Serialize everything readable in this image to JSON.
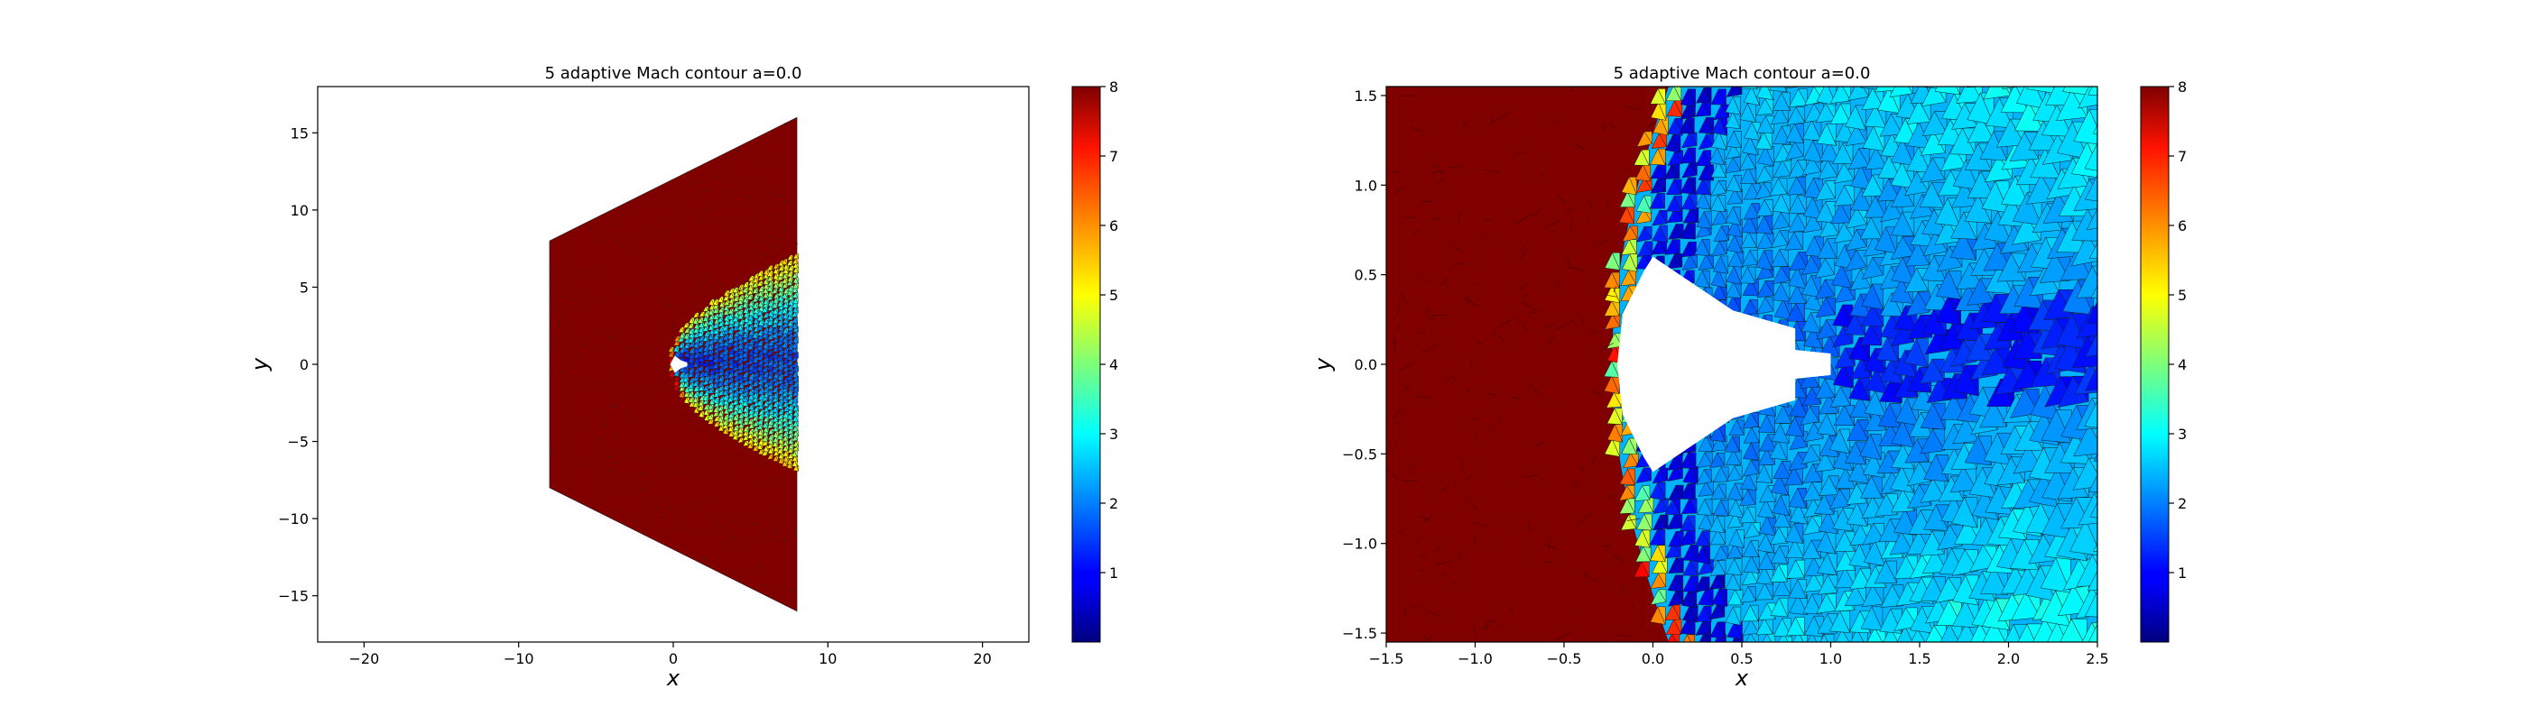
{
  "colors": {
    "background": "#ffffff",
    "axis": "#000000",
    "upstream": "#800000",
    "mesh_edge": "#1a1a1a",
    "body": "#ffffff"
  },
  "colormap": "jet",
  "chart_data": [
    {
      "type": "tricontour",
      "title": "5 adaptive Mach contour a=0.0",
      "xlabel": "x",
      "ylabel": "y",
      "xlim": [
        -23,
        23
      ],
      "ylim": [
        -18,
        18
      ],
      "xticks": [
        -20,
        -10,
        0,
        10,
        20
      ],
      "yticks": [
        -15,
        -10,
        -5,
        0,
        5,
        10,
        15
      ],
      "xtick_labels": [
        "−20",
        "−10",
        "0",
        "10",
        "20"
      ],
      "ytick_labels": [
        "−15",
        "−10",
        "−5",
        "0",
        "5",
        "10",
        "15"
      ],
      "domain_polygon": [
        [
          -8,
          8
        ],
        [
          8,
          16
        ],
        [
          8,
          -16
        ],
        [
          -8,
          -8
        ]
      ],
      "body_polygon": [
        [
          -0.2,
          0
        ],
        [
          0.1,
          0.55
        ],
        [
          0.5,
          0.25
        ],
        [
          0.9,
          0.12
        ],
        [
          0.9,
          -0.12
        ],
        [
          0.5,
          -0.25
        ],
        [
          0.1,
          -0.55
        ]
      ],
      "freestream_mach": 8,
      "colorbar": {
        "min": 0,
        "max": 8,
        "ticks": [
          1,
          2,
          3,
          4,
          5,
          6,
          7,
          8
        ],
        "tick_labels": [
          "1",
          "2",
          "3",
          "4",
          "5",
          "6",
          "7",
          "8"
        ]
      }
    },
    {
      "type": "tricontour",
      "title": "5 adaptive Mach contour a=0.0",
      "xlabel": "x",
      "ylabel": "y",
      "xlim": [
        -1.5,
        2.5
      ],
      "ylim": [
        -1.55,
        1.55
      ],
      "xticks": [
        -1.5,
        -1.0,
        -0.5,
        0.0,
        0.5,
        1.0,
        1.5,
        2.0,
        2.5
      ],
      "yticks": [
        -1.5,
        -1.0,
        -0.5,
        0.0,
        0.5,
        1.0,
        1.5
      ],
      "xtick_labels": [
        "−1.5",
        "−1.0",
        "−0.5",
        "0.0",
        "0.5",
        "1.0",
        "1.5",
        "2.0",
        "2.5"
      ],
      "ytick_labels": [
        "−1.5",
        "−1.0",
        "−0.5",
        "0.0",
        "0.5",
        "1.0",
        "1.5"
      ],
      "body_polygon": [
        [
          -0.2,
          0
        ],
        [
          -0.17,
          0.28
        ],
        [
          -0.05,
          0.52
        ],
        [
          0.0,
          0.6
        ],
        [
          0.45,
          0.3
        ],
        [
          0.8,
          0.2
        ],
        [
          0.8,
          0.08
        ],
        [
          1.0,
          0.06
        ],
        [
          1.0,
          -0.06
        ],
        [
          0.8,
          -0.08
        ],
        [
          0.8,
          -0.2
        ],
        [
          0.45,
          -0.3
        ],
        [
          0.0,
          -0.6
        ],
        [
          -0.05,
          -0.52
        ],
        [
          -0.17,
          -0.28
        ]
      ],
      "freestream_mach": 8,
      "colorbar": {
        "min": 0,
        "max": 8,
        "ticks": [
          1,
          2,
          3,
          4,
          5,
          6,
          7,
          8
        ],
        "tick_labels": [
          "1",
          "2",
          "3",
          "4",
          "5",
          "6",
          "7",
          "8"
        ]
      }
    }
  ]
}
